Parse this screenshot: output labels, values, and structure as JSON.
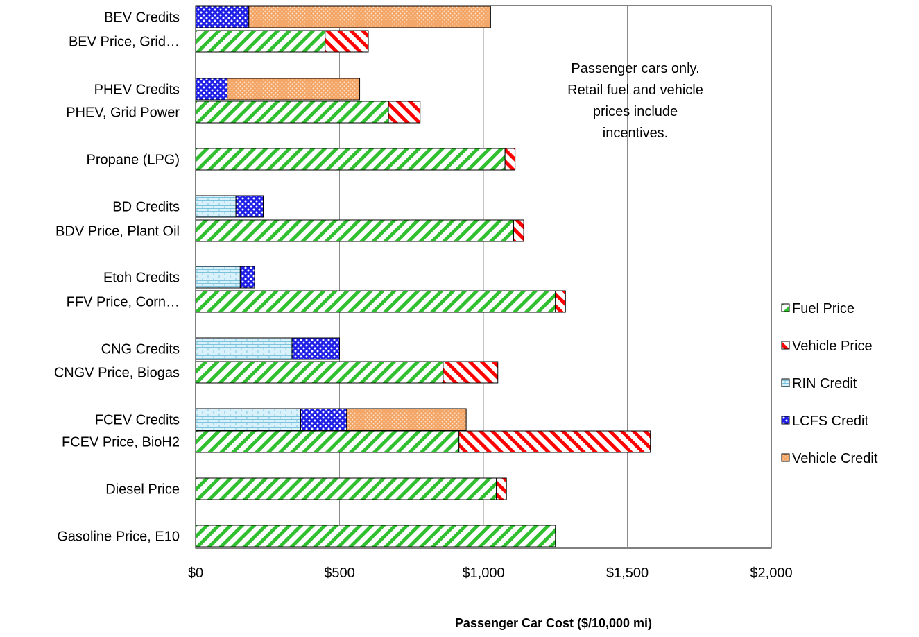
{
  "chart_data": {
    "type": "bar",
    "orientation": "horizontal",
    "stacked": true,
    "xlabel": "Passenger Car Cost ($/10,000 mi)",
    "xlim": [
      0,
      2000
    ],
    "xticks": [
      0,
      500,
      1000,
      1500,
      2000
    ],
    "xtick_labels": [
      "$0",
      "$500",
      "$1,000",
      "$1,500",
      "$2,000"
    ],
    "grid": "vertical",
    "legend_position": "right",
    "annotation": "Passenger cars only.\nRetail fuel and vehicle\nprices include\nincentives.",
    "categories": [
      "BEV Credits",
      "BEV Price, Grid…",
      "PHEV Credits",
      "PHEV, Grid Power",
      "Propane (LPG)",
      "BD Credits",
      "BDV Price, Plant Oil",
      "Etoh Credits",
      "FFV Price, Corn…",
      "CNG Credits",
      "CNGV Price, Biogas",
      "FCEV Credits",
      "FCEV Price, BioH2",
      "Diesel Price",
      "Gasoline Price, E10"
    ],
    "series": [
      {
        "name": "Fuel Price",
        "color": "#2fbf2f",
        "pattern": "hatch-green",
        "values": [
          0,
          450,
          0,
          670,
          1075,
          0,
          1105,
          0,
          1250,
          0,
          860,
          0,
          915,
          1045,
          1250
        ]
      },
      {
        "name": "Vehicle Price",
        "color": "#ff0000",
        "pattern": "hatch-red",
        "values": [
          0,
          150,
          0,
          110,
          35,
          0,
          35,
          0,
          35,
          0,
          190,
          0,
          665,
          35,
          0
        ]
      },
      {
        "name": "RIN Credit",
        "color": "#b9e3f2",
        "pattern": "brick-blue",
        "values": [
          0,
          0,
          0,
          0,
          0,
          140,
          0,
          155,
          0,
          335,
          0,
          365,
          0,
          0,
          0
        ]
      },
      {
        "name": "LCFS Credit",
        "color": "#2a2aff",
        "pattern": "dots-blue",
        "values": [
          185,
          0,
          110,
          0,
          0,
          95,
          0,
          50,
          0,
          165,
          0,
          160,
          0,
          0,
          0
        ]
      },
      {
        "name": "Vehicle Credit",
        "color": "#f4a46a",
        "pattern": "dots-orange",
        "values": [
          840,
          0,
          460,
          0,
          0,
          0,
          0,
          0,
          0,
          0,
          0,
          415,
          0,
          0,
          0
        ]
      }
    ]
  }
}
